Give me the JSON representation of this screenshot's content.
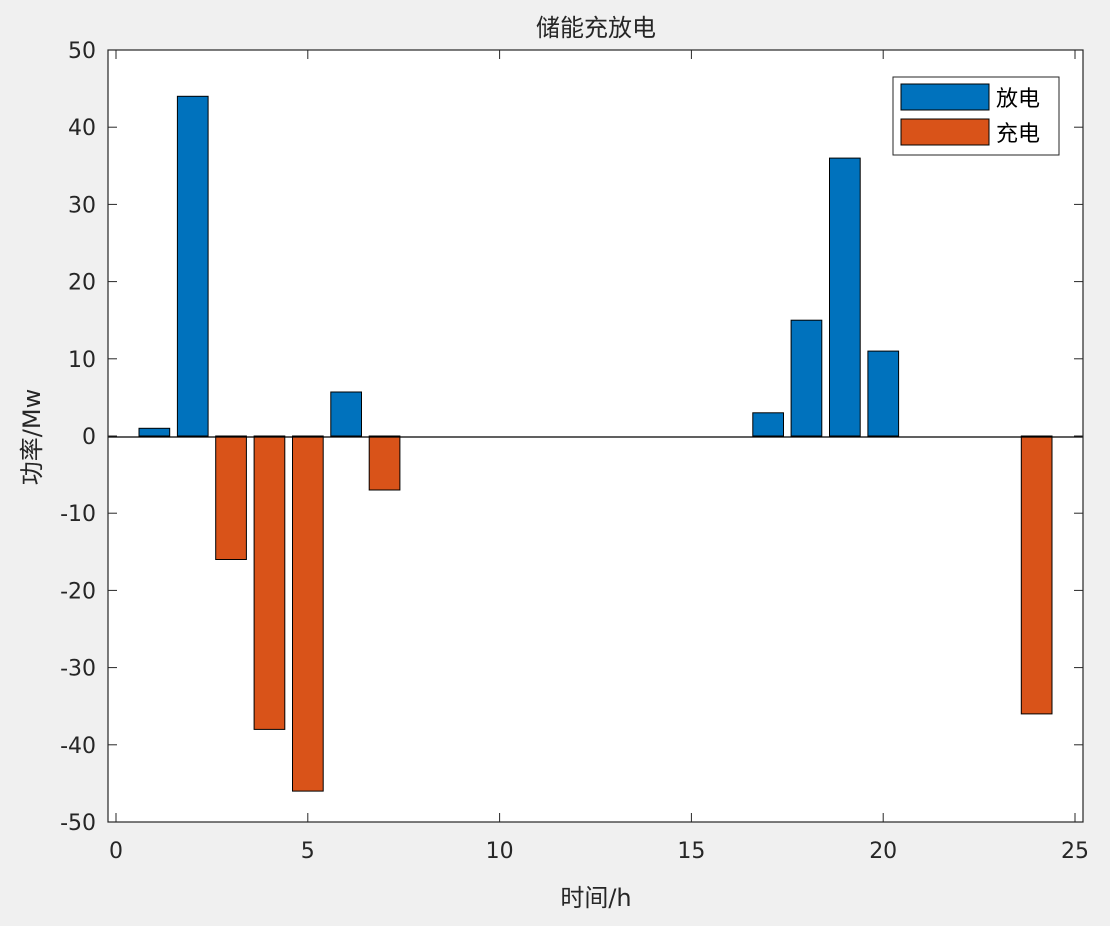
{
  "chart_data": {
    "type": "bar",
    "title": "储能充放电",
    "xlabel": "时间/h",
    "ylabel": "功率/Mw",
    "xlim": [
      0,
      25
    ],
    "ylim": [
      -50,
      50
    ],
    "xticks": [
      0,
      5,
      10,
      15,
      20,
      25
    ],
    "yticks": [
      50,
      40,
      30,
      20,
      10,
      0,
      -10,
      -20,
      -30,
      -40,
      -50
    ],
    "grid": false,
    "legend_position": "top-right",
    "x": [
      1,
      2,
      3,
      4,
      5,
      6,
      7,
      8,
      9,
      10,
      11,
      12,
      13,
      14,
      15,
      16,
      17,
      18,
      19,
      20,
      21,
      22,
      23,
      24
    ],
    "series": [
      {
        "name": "放电",
        "color": "#0072bd",
        "values": [
          1,
          44,
          0,
          0,
          0,
          5.7,
          0,
          0,
          0,
          0,
          0,
          0,
          0,
          0,
          0,
          0,
          3,
          15,
          36,
          11,
          0,
          0,
          0,
          0
        ]
      },
      {
        "name": "充电",
        "color": "#d95319",
        "values": [
          0,
          0,
          -16,
          -38,
          -46,
          0,
          -7,
          0,
          0,
          0,
          0,
          0,
          0,
          0,
          0,
          0,
          0,
          0,
          0,
          0,
          0,
          0,
          0,
          -36
        ]
      }
    ]
  }
}
